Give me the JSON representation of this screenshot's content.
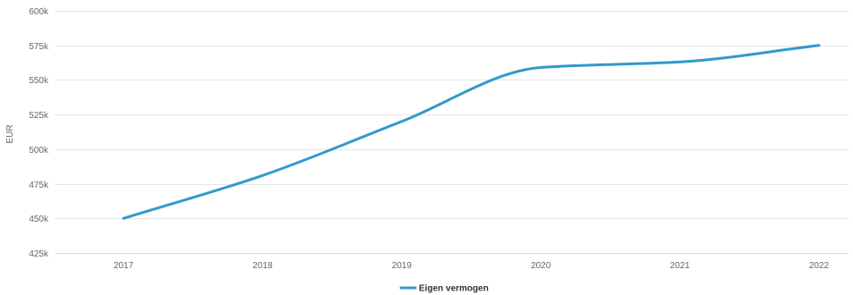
{
  "chart_data": {
    "type": "line",
    "title": "",
    "xlabel": "",
    "ylabel": "EUR",
    "categories": [
      "2017",
      "2018",
      "2019",
      "2020",
      "2021",
      "2022"
    ],
    "series": [
      {
        "name": "Eigen vermogen",
        "color": "#3399cc",
        "values": [
          450000,
          481000,
          520000,
          559000,
          563000,
          575000
        ]
      }
    ],
    "ylim": [
      425000,
      600000
    ],
    "yticks": [
      425000,
      450000,
      475000,
      500000,
      525000,
      550000,
      575000,
      600000
    ],
    "ytick_labels": [
      "425k",
      "450k",
      "475k",
      "500k",
      "525k",
      "550k",
      "575k",
      "600k"
    ],
    "grid": true,
    "legend_position": "bottom-center"
  }
}
